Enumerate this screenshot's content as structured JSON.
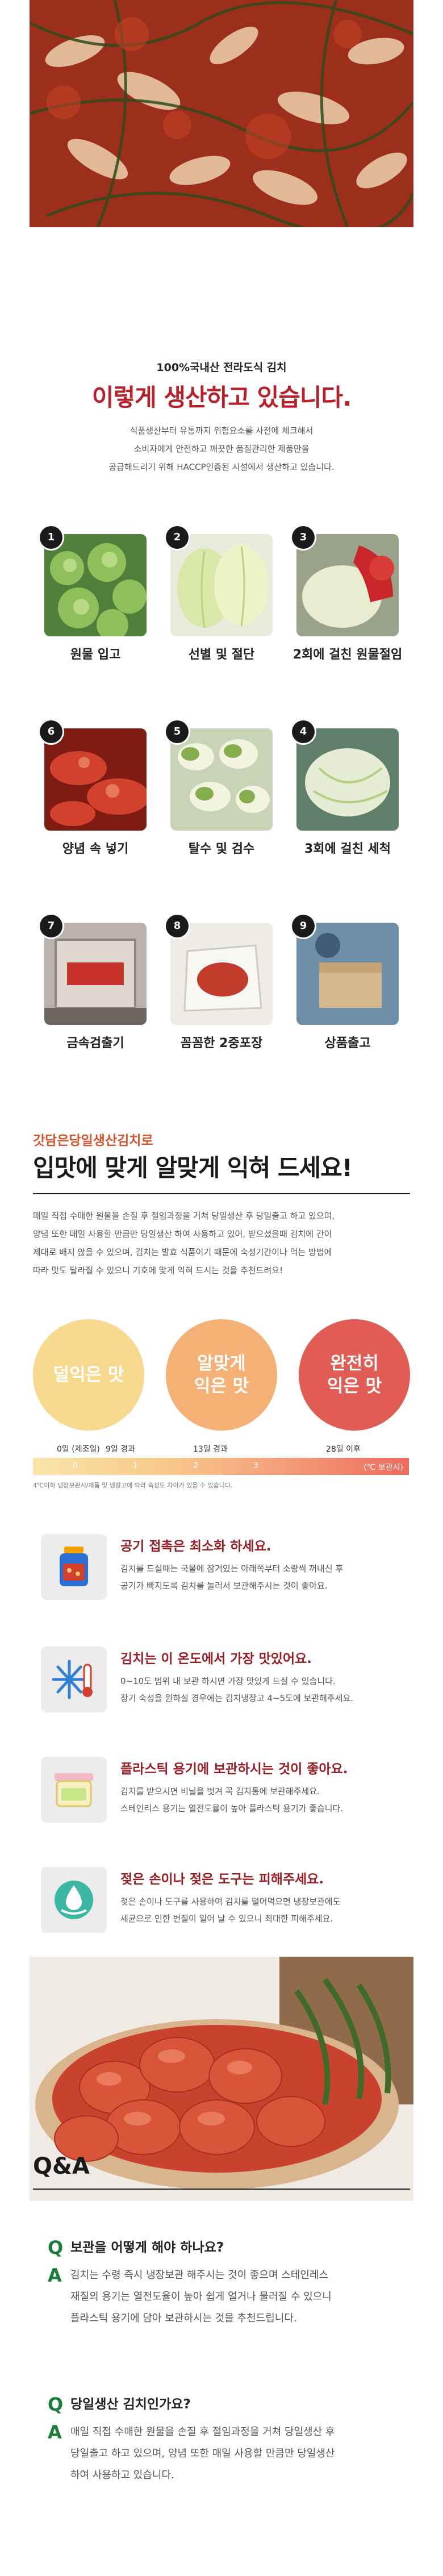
{
  "hero": {
    "caption": ""
  },
  "intro": {
    "subtitle": "100%국내산 전라도식 김치",
    "title": "이렇게 생산하고 있습니다.",
    "desc_lines": [
      "식품생산부터 유통까지 위험요소를 사전에 체크해서",
      "소비자에게 안전하고 깨끗한 품질관리한 제품만을",
      "공급해드리기 위해 HACCP인증된 시설에서 생산하고 있습니다."
    ]
  },
  "steps": [
    {
      "num": "1",
      "label": "원물 입고"
    },
    {
      "num": "2",
      "label": "선별 및 절단"
    },
    {
      "num": "3",
      "label": "2회에 걸친 원물절임"
    },
    {
      "num": "4",
      "label": "3회에 걸친 세척"
    },
    {
      "num": "5",
      "label": "탈수 및 검수"
    },
    {
      "num": "6",
      "label": "양념 속 넣기"
    },
    {
      "num": "7",
      "label": "금속검출기"
    },
    {
      "num": "8",
      "label": "꼼꼼한 2중포장"
    },
    {
      "num": "9",
      "label": "상품출고"
    }
  ],
  "ripen": {
    "tag": "갓담은당일생산김치로",
    "title": "입맛에 맞게 알맞게 익혀 드세요!",
    "desc_lines": [
      "매일 직접 수매한 원물을 손질 후 절임과정을 거쳐 당일생산 후 당일출고 하고 있으며,",
      "양념 또한 매일 사용할 만큼만 당일생산 하여 사용하고 있어, 받으셨을때 김치에 간이",
      "제대로 배지 않을 수 있으며, 김치는 발효 식품이기 때문에 숙성기간이나 먹는 방법에",
      "따라 맛도 달라질 수 있으니 기호에 맞게 익혀 드시는 것을 추천드려요!"
    ],
    "stages": [
      {
        "line1": "덜익은 맛",
        "line2": ""
      },
      {
        "line1": "알맞게",
        "line2": "익은 맛"
      },
      {
        "line1": "완전히",
        "line2": "익은 맛"
      }
    ],
    "timeline": [
      "0일 (제조일)",
      "9일 경과",
      "13일 경과",
      "28일 이후"
    ],
    "bar_ticks": [
      "0",
      "1",
      "2",
      "3"
    ],
    "bar_unit": "(℃ 보관시)",
    "note": "4℃이하 냉장보관시/제품 및 냉장고에 따라 숙성도 차이가 있을 수 있습니다."
  },
  "tips": [
    {
      "icon": "jar-icon",
      "title": "공기 접촉은 최소화 하세요.",
      "lines": [
        "김치를 드실때는 국물에 잠겨있는 아래쪽부터 소량씩 꺼내신 후",
        "공기가 빠지도록 김치를 눌러서 보관해주시는 것이 좋아요."
      ]
    },
    {
      "icon": "snowflake-thermometer-icon",
      "title": "김치는 이 온도에서 가장 맛있어요.",
      "lines": [
        "0~10도 범위 내 보관 하시면 가장 맛있게 드실 수 있습니다.",
        "장기 숙성을 원하실 경우에는 김치냉장고 4~5도에 보관해주세요."
      ]
    },
    {
      "icon": "container-icon",
      "title": "플라스틱 용기에 보관하시는 것이 좋아요.",
      "lines": [
        "김치를 받으시면 비닐을 벗겨 꼭 김치통에 보관해주세요.",
        "스테인리스 용기는 열전도율이 높아 플라스틱 용기가 좋습니다."
      ]
    },
    {
      "icon": "water-drop-hand-icon",
      "title": "젖은 손이나 젖은 도구는 피해주세요.",
      "lines": [
        "젖은 손이나 도구를 사용하여 김치를 덜어먹으면 냉장보관에도",
        "세균으로 인한 변질이 일어 날 수 있으니 최대한 피해주세요."
      ]
    }
  ],
  "food_photo": {
    "caption": ""
  },
  "qa": {
    "title": "Q&A",
    "items": [
      {
        "q_mark": "Q",
        "question": "보관을 어떻게 해야 하나요?",
        "a_mark": "A",
        "answer_lines": [
          "김치는 수령 즉시 냉장보관 해주시는 것이 좋으며 스테인레스",
          "재질의 용기는 열전도율이 높아 쉽게 얼거나 물러질 수 있으니",
          "플라스틱 용기에 담아 보관하시는 것을 추천드립니다."
        ]
      },
      {
        "q_mark": "Q",
        "question": "당일생산 김치인가요?",
        "a_mark": "A",
        "answer_lines": [
          "매일 직접 수매한 원물을 손질 후 절임과정을 거쳐 당일생산 후",
          "당일출고 하고 있으며, 양념 또한 매일 사용할 만큼만 당일생산",
          "하여 사용하고 있습니다."
        ]
      }
    ]
  }
}
